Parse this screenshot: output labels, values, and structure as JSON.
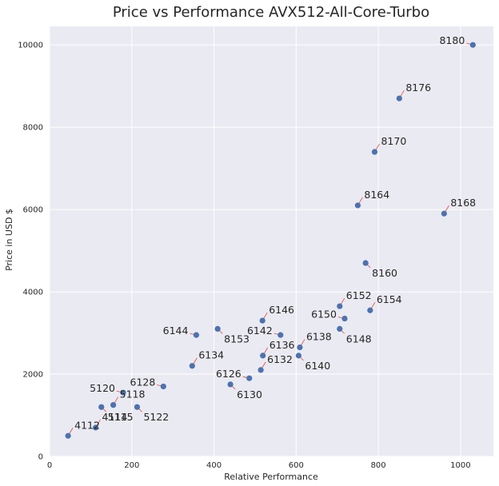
{
  "chart_data": {
    "type": "scatter",
    "title": "Price vs Performance AVX512-All-Core-Turbo",
    "xlabel": "Relative Performance",
    "ylabel": "Price in USD $",
    "xlim": [
      0,
      1080
    ],
    "ylim": [
      0,
      10450
    ],
    "xticks": [
      0,
      200,
      400,
      600,
      800,
      1000
    ],
    "yticks": [
      0,
      2000,
      4000,
      6000,
      8000,
      10000
    ],
    "grid": true,
    "background": "#eaeaf2",
    "grid_color": "#ffffff",
    "point_color": "#4c72b0",
    "arrow_color": "#e8443a",
    "points": [
      {
        "label": "8180",
        "x": 1030,
        "y": 10000,
        "label_at": "left"
      },
      {
        "label": "8176",
        "x": 851,
        "y": 8700,
        "label_at": "upper-right"
      },
      {
        "label": "8170",
        "x": 791,
        "y": 7400,
        "label_at": "upper-right"
      },
      {
        "label": "8164",
        "x": 750,
        "y": 6100,
        "label_at": "upper-right"
      },
      {
        "label": "8168",
        "x": 960,
        "y": 5900,
        "label_at": "upper-right"
      },
      {
        "label": "8160",
        "x": 769,
        "y": 4700,
        "label_at": "lower-right"
      },
      {
        "label": "6152",
        "x": 706,
        "y": 3650,
        "label_at": "upper-right"
      },
      {
        "label": "6154",
        "x": 780,
        "y": 3550,
        "label_at": "upper-right"
      },
      {
        "label": "6150",
        "x": 718,
        "y": 3350,
        "label_at": "left"
      },
      {
        "label": "6148",
        "x": 706,
        "y": 3100,
        "label_at": "lower-right"
      },
      {
        "label": "6146",
        "x": 518,
        "y": 3300,
        "label_at": "upper-right"
      },
      {
        "label": "6142",
        "x": 562,
        "y": 2950,
        "label_at": "left"
      },
      {
        "label": "8153",
        "x": 409,
        "y": 3100,
        "label_at": "lower-right"
      },
      {
        "label": "6144",
        "x": 357,
        "y": 2950,
        "label_at": "left"
      },
      {
        "label": "6138",
        "x": 609,
        "y": 2650,
        "label_at": "upper-right"
      },
      {
        "label": "6136",
        "x": 519,
        "y": 2450,
        "label_at": "upper-right"
      },
      {
        "label": "6140",
        "x": 606,
        "y": 2450,
        "label_at": "lower-right"
      },
      {
        "label": "6132",
        "x": 514,
        "y": 2100,
        "label_at": "upper-right"
      },
      {
        "label": "6134",
        "x": 347,
        "y": 2200,
        "label_at": "upper-right"
      },
      {
        "label": "6126",
        "x": 486,
        "y": 1900,
        "label_at": "left"
      },
      {
        "label": "6130",
        "x": 440,
        "y": 1750,
        "label_at": "lower-right"
      },
      {
        "label": "6128",
        "x": 277,
        "y": 1700,
        "label_at": "left"
      },
      {
        "label": "5120",
        "x": 179,
        "y": 1550,
        "label_at": "left"
      },
      {
        "label": "5118",
        "x": 155,
        "y": 1250,
        "label_at": "upper-right"
      },
      {
        "label": "5122",
        "x": 213,
        "y": 1200,
        "label_at": "lower-right"
      },
      {
        "label": "5115",
        "x": 126,
        "y": 1200,
        "label_at": "lower-right"
      },
      {
        "label": "4114",
        "x": 112,
        "y": 700,
        "label_at": "upper-right"
      },
      {
        "label": "4112",
        "x": 45,
        "y": 500,
        "label_at": "upper-right"
      }
    ]
  }
}
